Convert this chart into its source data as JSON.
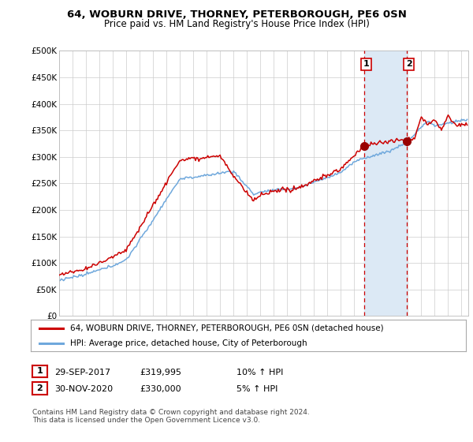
{
  "title": "64, WOBURN DRIVE, THORNEY, PETERBOROUGH, PE6 0SN",
  "subtitle": "Price paid vs. HM Land Registry's House Price Index (HPI)",
  "ylabel_ticks": [
    "£0",
    "£50K",
    "£100K",
    "£150K",
    "£200K",
    "£250K",
    "£300K",
    "£350K",
    "£400K",
    "£450K",
    "£500K"
  ],
  "ytick_values": [
    0,
    50000,
    100000,
    150000,
    200000,
    250000,
    300000,
    350000,
    400000,
    450000,
    500000
  ],
  "xlim_start": 1995.0,
  "xlim_end": 2025.5,
  "ylim_min": 0,
  "ylim_max": 500000,
  "hpi_color": "#6fa8dc",
  "price_color": "#cc0000",
  "purchase1_year": 2017.75,
  "purchase1_price": 319995,
  "purchase2_year": 2020.917,
  "purchase2_price": 330000,
  "legend_line1": "64, WOBURN DRIVE, THORNEY, PETERBOROUGH, PE6 0SN (detached house)",
  "legend_line2": "HPI: Average price, detached house, City of Peterborough",
  "table_row1": [
    "1",
    "29-SEP-2017",
    "£319,995",
    "10% ↑ HPI"
  ],
  "table_row2": [
    "2",
    "30-NOV-2020",
    "£330,000",
    "5% ↑ HPI"
  ],
  "footnote": "Contains HM Land Registry data © Crown copyright and database right 2024.\nThis data is licensed under the Open Government Licence v3.0.",
  "highlight_color": "#dce9f5",
  "dashed_color": "#cc0000",
  "grid_color": "#cccccc",
  "bg_color": "#f5f5f5"
}
